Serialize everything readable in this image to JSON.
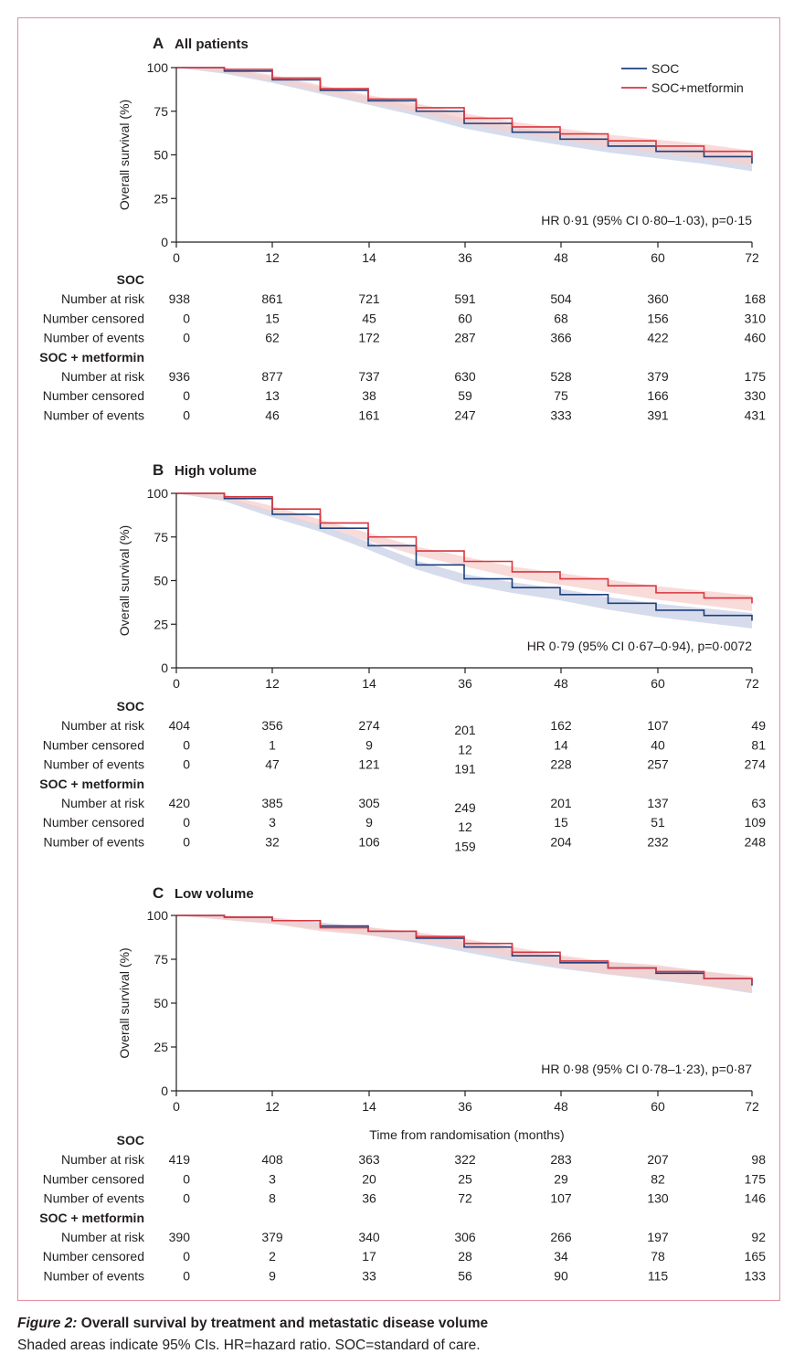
{
  "chart_data": [
    {
      "type": "line",
      "panel_label": "A",
      "title": "All patients",
      "ylabel": "Overall survival (%)",
      "xlabel": "",
      "ylim": [
        0,
        100
      ],
      "yticks": [
        "0",
        "25",
        "50",
        "75",
        "100"
      ],
      "xticks": [
        "0",
        "12",
        "14",
        "36",
        "48",
        "60",
        "72"
      ],
      "hr_text": "HR 0·91 (95% CI 0·80–1·03), p=0·15",
      "legend": {
        "position": "top-right",
        "entries": [
          "SOC",
          "SOC+metformin"
        ]
      },
      "series": [
        {
          "name": "SOC",
          "color": "#1f3f7a",
          "x": [
            0,
            6,
            12,
            18,
            24,
            30,
            36,
            42,
            48,
            54,
            60,
            66,
            72
          ],
          "y": [
            100,
            98,
            93,
            87,
            81,
            75,
            68,
            63,
            59,
            55,
            52,
            49,
            45
          ]
        },
        {
          "name": "SOC+metformin",
          "color": "#d9363e",
          "x": [
            0,
            6,
            12,
            18,
            24,
            30,
            36,
            42,
            48,
            54,
            60,
            66,
            72
          ],
          "y": [
            100,
            99,
            94,
            88,
            82,
            77,
            71,
            66,
            62,
            58,
            55,
            52,
            48
          ]
        }
      ],
      "risk_table": [
        {
          "group": "SOC",
          "rows": [
            {
              "label": "Number at risk",
              "values": [
                "938",
                "861",
                "721",
                "591",
                "504",
                "360",
                "168"
              ]
            },
            {
              "label": "Number censored",
              "values": [
                "0",
                "15",
                "45",
                "60",
                "68",
                "156",
                "310"
              ]
            },
            {
              "label": "Number of events",
              "values": [
                "0",
                "62",
                "172",
                "287",
                "366",
                "422",
                "460"
              ]
            }
          ]
        },
        {
          "group": "SOC + metformin",
          "rows": [
            {
              "label": "Number at risk",
              "values": [
                "936",
                "877",
                "737",
                "630",
                "528",
                "379",
                "175"
              ]
            },
            {
              "label": "Number censored",
              "values": [
                "0",
                "13",
                "38",
                "59",
                "75",
                "166",
                "330"
              ]
            },
            {
              "label": "Number of events",
              "values": [
                "0",
                "46",
                "161",
                "247",
                "333",
                "391",
                "431"
              ]
            }
          ]
        }
      ]
    },
    {
      "type": "line",
      "panel_label": "B",
      "title": "High volume",
      "ylabel": "Overall survival (%)",
      "xlabel": "",
      "ylim": [
        0,
        100
      ],
      "yticks": [
        "0",
        "25",
        "50",
        "75",
        "100"
      ],
      "xticks": [
        "0",
        "12",
        "14",
        "36",
        "48",
        "60",
        "72"
      ],
      "hr_text": "HR 0·79 (95% CI 0·67–0·94), p=0·0072",
      "series": [
        {
          "name": "SOC",
          "color": "#1f3f7a",
          "x": [
            0,
            6,
            12,
            18,
            24,
            30,
            36,
            42,
            48,
            54,
            60,
            66,
            72
          ],
          "y": [
            100,
            97,
            88,
            80,
            70,
            59,
            51,
            46,
            42,
            37,
            33,
            30,
            27
          ]
        },
        {
          "name": "SOC+metformin",
          "color": "#d9363e",
          "x": [
            0,
            6,
            12,
            18,
            24,
            30,
            36,
            42,
            48,
            54,
            60,
            66,
            72
          ],
          "y": [
            100,
            98,
            91,
            83,
            75,
            67,
            61,
            55,
            51,
            47,
            43,
            40,
            37
          ]
        }
      ],
      "risk_table": [
        {
          "group": "SOC",
          "rows": [
            {
              "label": "Number at risk",
              "values": [
                "404",
                "356",
                "274",
                "201",
                "162",
                "107",
                "49"
              ]
            },
            {
              "label": "Number censored",
              "values": [
                "0",
                "1",
                "9",
                "12",
                "14",
                "40",
                "81"
              ]
            },
            {
              "label": "Number of events",
              "values": [
                "0",
                "47",
                "121",
                "191",
                "228",
                "257",
                "274"
              ]
            }
          ]
        },
        {
          "group": "SOC + metformin",
          "rows": [
            {
              "label": "Number at risk",
              "values": [
                "420",
                "385",
                "305",
                "249",
                "201",
                "137",
                "63"
              ]
            },
            {
              "label": "Number censored",
              "values": [
                "0",
                "3",
                "9",
                "12",
                "15",
                "51",
                "109"
              ]
            },
            {
              "label": "Number of events",
              "values": [
                "0",
                "32",
                "106",
                "159",
                "204",
                "232",
                "248"
              ]
            }
          ]
        }
      ]
    },
    {
      "type": "line",
      "panel_label": "C",
      "title": "Low volume",
      "ylabel": "Overall survival (%)",
      "xlabel": "Time from randomisation (months)",
      "ylim": [
        0,
        100
      ],
      "yticks": [
        "0",
        "25",
        "50",
        "75",
        "100"
      ],
      "xticks": [
        "0",
        "12",
        "14",
        "36",
        "48",
        "60",
        "72"
      ],
      "hr_text": "HR 0·98 (95% CI 0·78–1·23), p=0·87",
      "series": [
        {
          "name": "SOC",
          "color": "#1f3f7a",
          "x": [
            0,
            6,
            12,
            18,
            24,
            30,
            36,
            42,
            48,
            54,
            60,
            66,
            72
          ],
          "y": [
            100,
            99,
            97,
            94,
            91,
            87,
            82,
            77,
            73,
            70,
            67,
            64,
            60
          ]
        },
        {
          "name": "SOC+metformin",
          "color": "#d9363e",
          "x": [
            0,
            6,
            12,
            18,
            24,
            30,
            36,
            42,
            48,
            54,
            60,
            66,
            72
          ],
          "y": [
            100,
            99,
            97,
            93,
            91,
            88,
            84,
            79,
            74,
            70,
            68,
            64,
            61
          ]
        }
      ],
      "risk_table": [
        {
          "group": "SOC",
          "rows": [
            {
              "label": "Number at risk",
              "values": [
                "419",
                "408",
                "363",
                "322",
                "283",
                "207",
                "98"
              ]
            },
            {
              "label": "Number censored",
              "values": [
                "0",
                "3",
                "20",
                "25",
                "29",
                "82",
                "175"
              ]
            },
            {
              "label": "Number of events",
              "values": [
                "0",
                "8",
                "36",
                "72",
                "107",
                "130",
                "146"
              ]
            }
          ]
        },
        {
          "group": "SOC + metformin",
          "rows": [
            {
              "label": "Number at risk",
              "values": [
                "390",
                "379",
                "340",
                "306",
                "266",
                "197",
                "92"
              ]
            },
            {
              "label": "Number censored",
              "values": [
                "0",
                "2",
                "17",
                "28",
                "34",
                "78",
                "165"
              ]
            },
            {
              "label": "Number of events",
              "values": [
                "0",
                "9",
                "33",
                "56",
                "90",
                "115",
                "133"
              ]
            }
          ]
        }
      ]
    }
  ],
  "caption": {
    "figure_label": "Figure 2:",
    "title": " Overall survival by treatment and metastatic disease volume",
    "note": "Shaded areas indicate 95% CIs. HR=hazard ratio. SOC=standard of care."
  },
  "colors": {
    "soc": "#1f3f7a",
    "metformin": "#d9363e",
    "soc_ci": "#c8d0e6",
    "met_ci": "#f7cfcc",
    "frame": "#e58fa0"
  }
}
